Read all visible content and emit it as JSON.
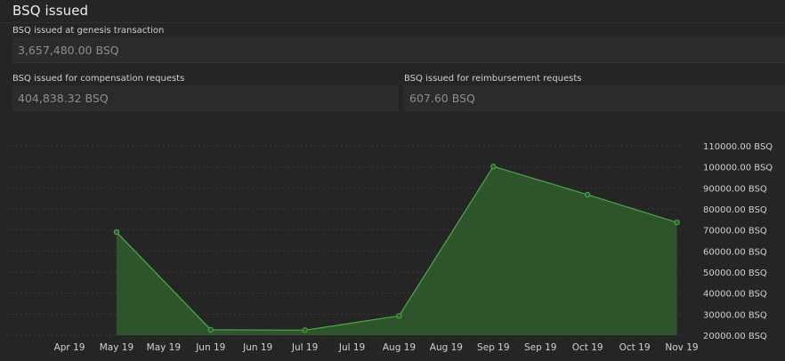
{
  "header": {
    "title": "BSQ issued"
  },
  "fields": {
    "genesis": {
      "label": "BSQ issued at genesis transaction",
      "value": "3,657,480.00 BSQ"
    },
    "compensation": {
      "label": "BSQ issued for compensation requests",
      "value": "404,838.32 BSQ"
    },
    "reimbursement": {
      "label": "BSQ issued for reimbursement requests",
      "value": "607.60 BSQ"
    }
  },
  "colors": {
    "line": "#4ca84a",
    "fill": "#2f5a2c",
    "grid": "#3a3a3a",
    "axis_text": "#d0d0d0"
  },
  "chart_data": {
    "type": "area",
    "title": "",
    "xlabel": "",
    "ylabel": "",
    "x_tick_labels": [
      "Apr 19",
      "May 19",
      "May 19",
      "Jun 19",
      "Jun 19",
      "Jul 19",
      "Jul 19",
      "Aug 19",
      "Aug 19",
      "Sep 19",
      "Sep 19",
      "Oct 19",
      "Oct 19",
      "Nov 19"
    ],
    "y_tick_labels": [
      "110000.00 BSQ",
      "100000.00 BSQ",
      "90000.00 BSQ",
      "80000.00 BSQ",
      "70000.00 BSQ",
      "60000.00 BSQ",
      "50000.00 BSQ",
      "40000.00 BSQ",
      "30000.00 BSQ",
      "20000.00 BSQ"
    ],
    "y_ticks": [
      110000,
      100000,
      90000,
      80000,
      70000,
      60000,
      50000,
      40000,
      30000,
      20000
    ],
    "ylim": [
      20000,
      110000
    ],
    "xlim": [
      0,
      13
    ],
    "series": [
      {
        "name": "BSQ issued",
        "points": [
          {
            "x": 1.0,
            "y": 69000
          },
          {
            "x": 3.0,
            "y": 22600
          },
          {
            "x": 5.0,
            "y": 22400
          },
          {
            "x": 7.0,
            "y": 29200
          },
          {
            "x": 9.0,
            "y": 100200
          },
          {
            "x": 11.0,
            "y": 86800
          },
          {
            "x": 12.9,
            "y": 73600
          }
        ]
      }
    ]
  }
}
